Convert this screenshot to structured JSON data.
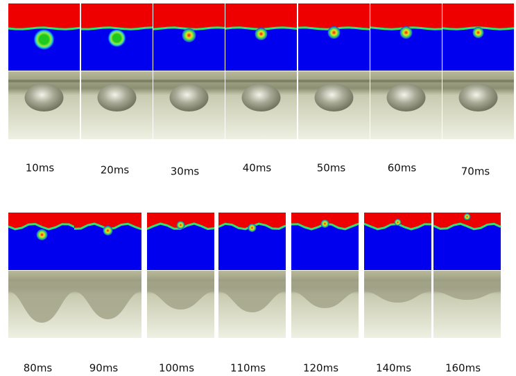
{
  "rows": [
    {
      "labels": [
        "10ms",
        "20ms",
        "30ms",
        "40ms",
        "50ms",
        "60ms",
        "70ms"
      ]
    },
    {
      "labels": [
        "80ms",
        "90ms",
        "100ms",
        "110ms",
        "120ms",
        "140ms",
        "160ms"
      ]
    }
  ]
}
